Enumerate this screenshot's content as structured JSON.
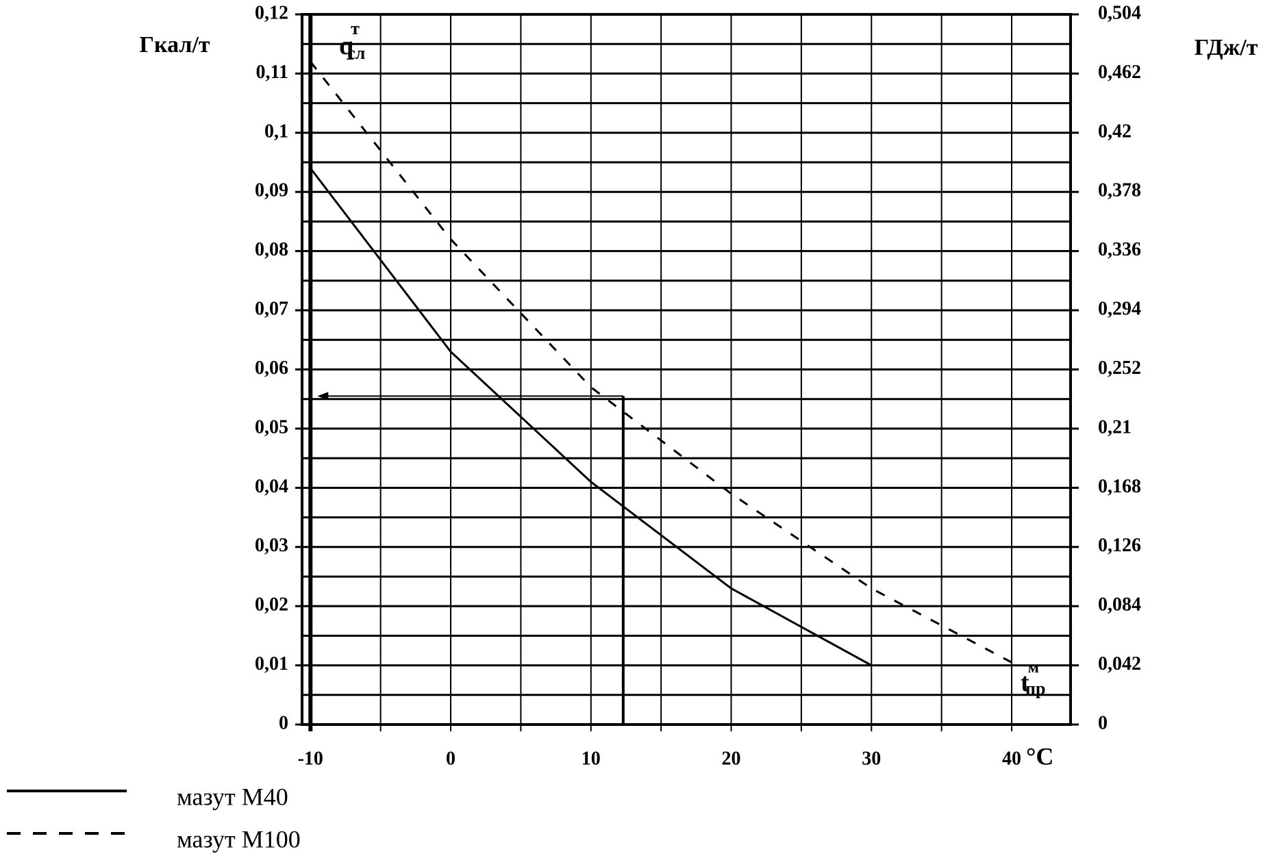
{
  "chart_data": {
    "type": "line",
    "y_label": "Гкал/т",
    "y2_label": "ГДж/т",
    "curve_label": {
      "text": "q",
      "sup": "т",
      "sub": "сл"
    },
    "x_label": {
      "text": "t",
      "sup": "м",
      "sub": "пр"
    },
    "x_unit": "°C",
    "x": [
      -10,
      0,
      10,
      20,
      30,
      40
    ],
    "series": [
      {
        "name": "мазут М40",
        "color": "#000000",
        "dash": false,
        "values": [
          0.094,
          0.063,
          0.041,
          0.023,
          0.01,
          null
        ]
      },
      {
        "name": "мазут М100",
        "color": "#000000",
        "dash": true,
        "values": [
          0.112,
          0.082,
          0.057,
          0.039,
          0.023,
          0.0105
        ]
      }
    ],
    "guide": {
      "x": 12.3,
      "y": 0.0555
    },
    "xlim": [
      -10.6,
      44.2
    ],
    "ylim": [
      0,
      0.12
    ],
    "y2lim": [
      0,
      0.504
    ],
    "xticks": [
      -10,
      0,
      10,
      20,
      30,
      40
    ],
    "x_minor_ticks": [
      -5,
      5,
      15,
      25,
      35
    ],
    "yticks": [
      0,
      {
        "value": 0.01,
        "label": "0,01"
      },
      {
        "value": 0.02,
        "label": "0,02"
      },
      {
        "value": 0.03,
        "label": "0,03"
      },
      {
        "value": 0.04,
        "label": "0,04"
      },
      {
        "value": 0.05,
        "label": "0,05"
      },
      {
        "value": 0.06,
        "label": "0,06"
      },
      {
        "value": 0.07,
        "label": "0,07"
      },
      {
        "value": 0.08,
        "label": "0,08"
      },
      {
        "value": 0.09,
        "label": "0,09"
      },
      {
        "value": 0.1,
        "label": "0,1"
      },
      {
        "value": 0.11,
        "label": "0,11"
      },
      {
        "value": 0.12,
        "label": "0,12"
      }
    ],
    "y_minor_ticks": [
      0.005,
      0.015,
      0.025,
      0.035,
      0.045,
      0.055,
      0.065,
      0.075,
      0.085,
      0.095,
      0.105,
      0.115
    ],
    "y2ticks": [
      0,
      {
        "value": 0.042,
        "label": "0,042"
      },
      {
        "value": 0.084,
        "label": "0,084"
      },
      {
        "value": 0.126,
        "label": "0,126"
      },
      {
        "value": 0.168,
        "label": "0,168"
      },
      {
        "value": 0.21,
        "label": "0,21"
      },
      {
        "value": 0.252,
        "label": "0,252"
      },
      {
        "value": 0.294,
        "label": "0,294"
      },
      {
        "value": 0.336,
        "label": "0,336"
      },
      {
        "value": 0.378,
        "label": "0,378"
      },
      {
        "value": 0.42,
        "label": "0,42"
      },
      {
        "value": 0.462,
        "label": "0,462"
      },
      {
        "value": 0.504,
        "label": "0,504"
      }
    ],
    "grid": true
  }
}
